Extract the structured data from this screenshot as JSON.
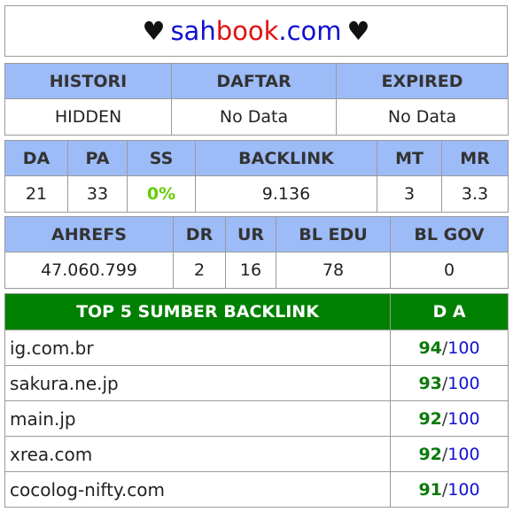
{
  "title": {
    "heart_left": "♥",
    "part_sah": "sah",
    "part_book": "book",
    "part_com": ".com",
    "heart_right": "♥"
  },
  "table1": {
    "headers": [
      "HISTORI",
      "DAFTAR",
      "EXPIRED"
    ],
    "values": [
      "HIDDEN",
      "No Data",
      "No Data"
    ]
  },
  "table2": {
    "headers": [
      "DA",
      "PA",
      "SS",
      "BACKLINK",
      "MT",
      "MR"
    ],
    "values": [
      "21",
      "33",
      "0%",
      "9.136",
      "3",
      "3.3"
    ]
  },
  "table3": {
    "headers": [
      "AHREFS",
      "DR",
      "UR",
      "BL EDU",
      "BL GOV"
    ],
    "values": [
      "47.060.799",
      "2",
      "16",
      "78",
      "0"
    ]
  },
  "top5": {
    "header_sources": "TOP 5 SUMBER BACKLINK",
    "header_da": "D A",
    "rows": [
      {
        "site": "ig.com.br",
        "da": "94",
        "max": "100"
      },
      {
        "site": "sakura.ne.jp",
        "da": "93",
        "max": "100"
      },
      {
        "site": "main.jp",
        "da": "92",
        "max": "100"
      },
      {
        "site": "xrea.com",
        "da": "92",
        "max": "100"
      },
      {
        "site": "cocolog-nifty.com",
        "da": "91",
        "max": "100"
      }
    ]
  },
  "colors": {
    "header_blue": "#9dbbf7",
    "header_green": "#008000",
    "da_green": "#0a7a0a",
    "link_blue": "#1010d0",
    "brand_red": "#e01010"
  }
}
